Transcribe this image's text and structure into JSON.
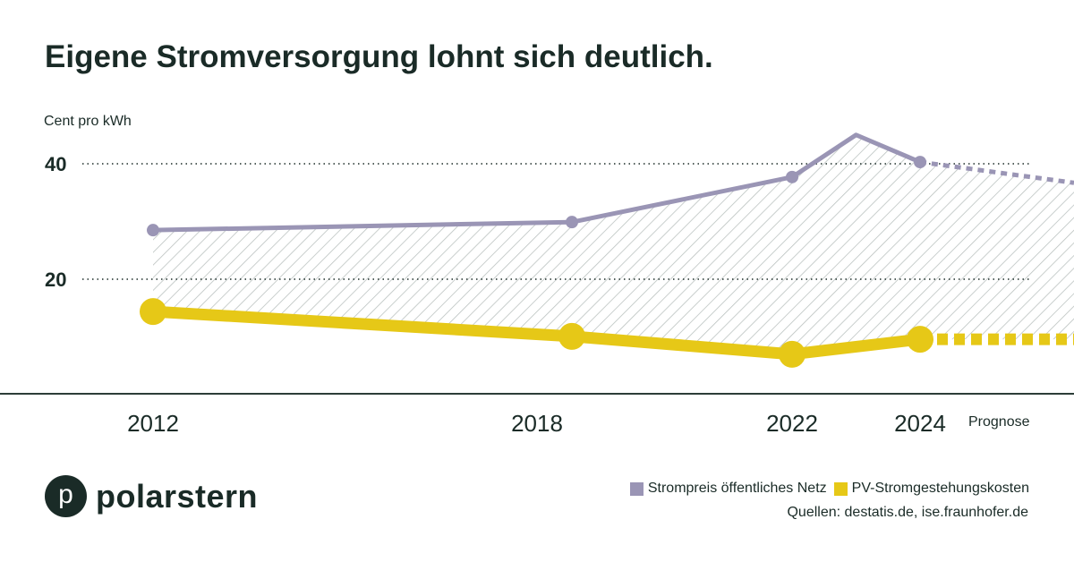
{
  "title": "Eigene Stromversorgung lohnt sich deutlich.",
  "brand": {
    "name": "polarstern",
    "mark": "p"
  },
  "legend": [
    {
      "label": "Strompreis öffentliches Netz",
      "color": "#9a95b5"
    },
    {
      "label": "PV-Stromgestehungskosten",
      "color": "#e6c817"
    }
  ],
  "sources": "Quellen: destatis.de, ise.fraunhofer.de",
  "forecast_label": "Prognose",
  "chart_data": {
    "type": "line",
    "ylabel": "Cent pro kWh",
    "yticks": [
      20,
      40
    ],
    "ylim": [
      0,
      50
    ],
    "xticks": [
      2012,
      2018,
      2022,
      2024
    ],
    "grid": "dotted horizontal at ticks",
    "area_between_series": "hatched",
    "series": [
      {
        "name": "Strompreis öffentliches Netz",
        "color": "#9a95b5",
        "points": [
          [
            2012,
            28.5
          ],
          [
            2018,
            29.9
          ],
          [
            2022,
            37.7
          ],
          [
            2023,
            45.0
          ],
          [
            2024,
            40.3
          ]
        ],
        "markers": [
          2012,
          2018,
          2022,
          2024
        ],
        "forecast": [
          [
            2024,
            40.3
          ],
          [
            2026.4,
            36.7
          ]
        ]
      },
      {
        "name": "PV-Stromgestehungskosten",
        "color": "#e6c817",
        "points": [
          [
            2012,
            14.4
          ],
          [
            2018,
            10.1
          ],
          [
            2022,
            7.0
          ],
          [
            2024,
            9.6
          ]
        ],
        "markers": [
          2012,
          2018,
          2022,
          2024
        ],
        "forecast": [
          [
            2024,
            9.6
          ],
          [
            2026.4,
            9.6
          ]
        ]
      }
    ]
  }
}
